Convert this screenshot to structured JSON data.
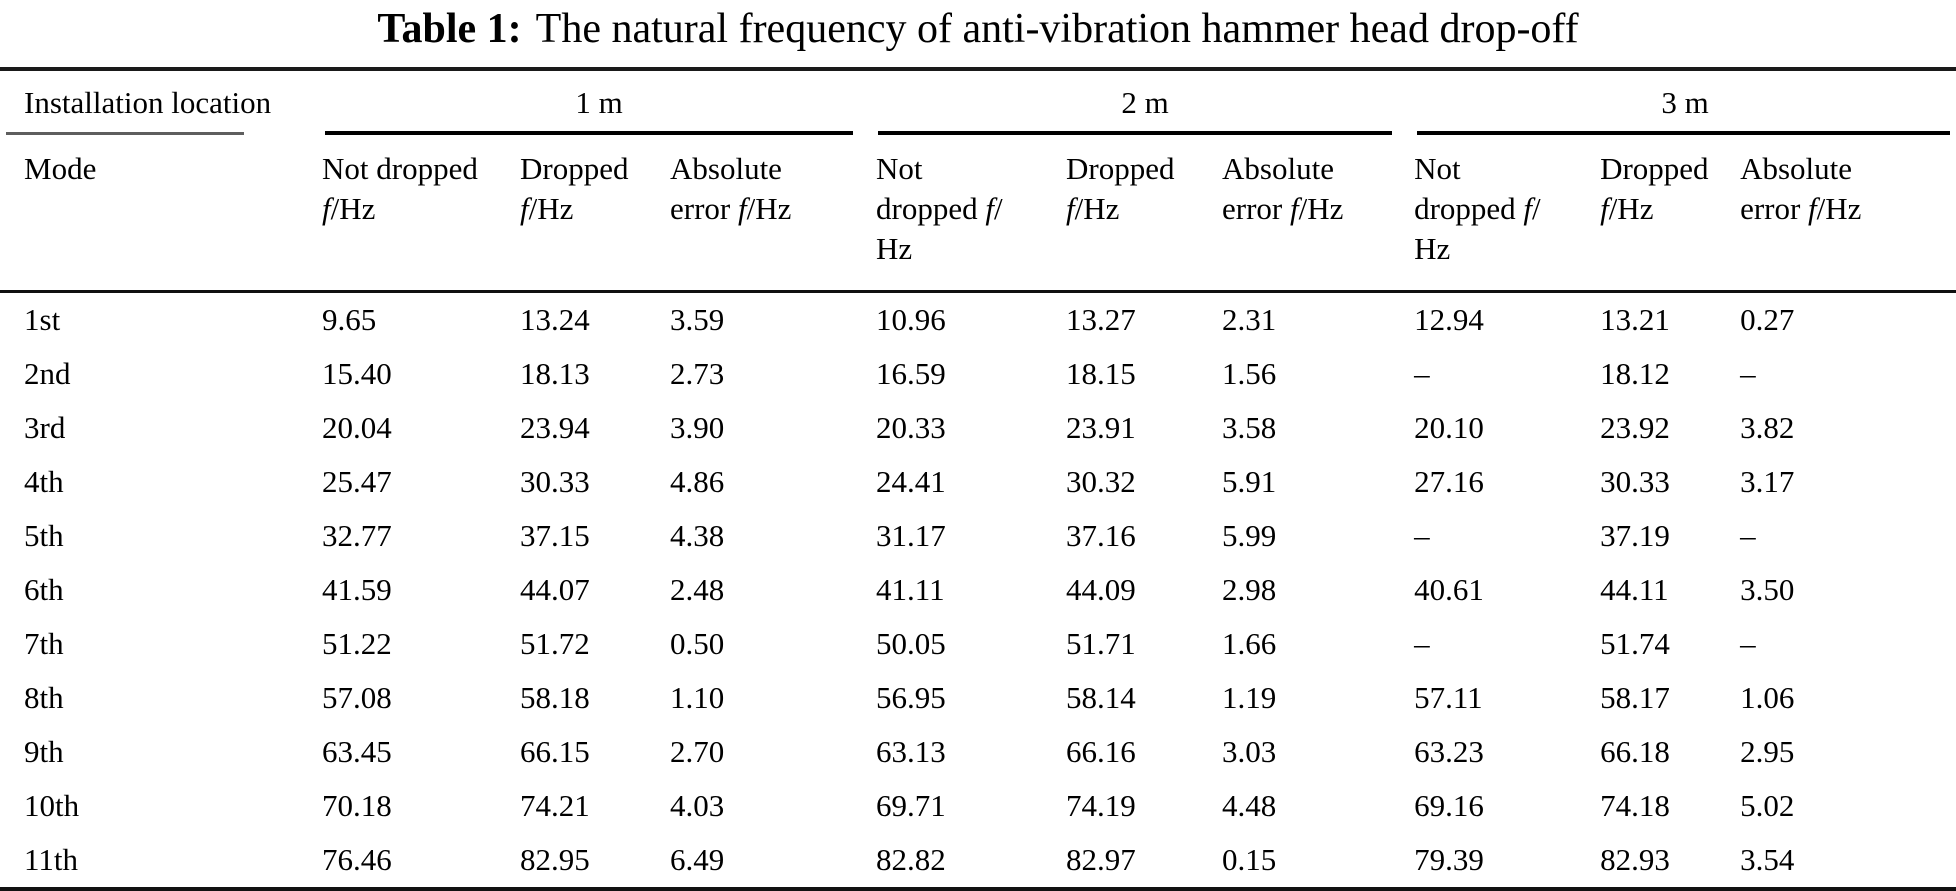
{
  "title": {
    "label": "Table 1:",
    "text": "The natural frequency of anti-vibration hammer head drop-off"
  },
  "table": {
    "corner_header": "Installation location",
    "mode_header": "Mode",
    "groups": [
      {
        "label": "1 m"
      },
      {
        "label": "2 m"
      },
      {
        "label": "3 m"
      }
    ],
    "col_headers": [
      {
        "l1": "Not dropped",
        "l2pre": "",
        "l2f": "f",
        "l2post": "/Hz",
        "l3": ""
      },
      {
        "l1": "Dropped",
        "l2pre": "",
        "l2f": "f",
        "l2post": "/Hz",
        "l3": ""
      },
      {
        "l1": "Absolute",
        "l2pre": "error ",
        "l2f": "f",
        "l2post": "/Hz",
        "l3": ""
      },
      {
        "l1": "Not",
        "l2pre": "dropped ",
        "l2f": "f",
        "l2post": "/",
        "l3": "Hz"
      },
      {
        "l1": "Dropped",
        "l2pre": "",
        "l2f": "f",
        "l2post": "/Hz",
        "l3": ""
      },
      {
        "l1": "Absolute",
        "l2pre": "error ",
        "l2f": "f",
        "l2post": "/Hz",
        "l3": ""
      },
      {
        "l1": "Not",
        "l2pre": "dropped ",
        "l2f": "f",
        "l2post": "/",
        "l3": "Hz"
      },
      {
        "l1": "Dropped",
        "l2pre": "",
        "l2f": "f",
        "l2post": "/Hz",
        "l3": ""
      },
      {
        "l1": "Absolute",
        "l2pre": "error ",
        "l2f": "f",
        "l2post": "/Hz",
        "l3": ""
      }
    ],
    "rows": [
      [
        "1st",
        "9.65",
        "13.24",
        "3.59",
        "10.96",
        "13.27",
        "2.31",
        "12.94",
        "13.21",
        "0.27"
      ],
      [
        "2nd",
        "15.40",
        "18.13",
        "2.73",
        "16.59",
        "18.15",
        "1.56",
        "–",
        "18.12",
        "–"
      ],
      [
        "3rd",
        "20.04",
        "23.94",
        "3.90",
        "20.33",
        "23.91",
        "3.58",
        "20.10",
        "23.92",
        "3.82"
      ],
      [
        "4th",
        "25.47",
        "30.33",
        "4.86",
        "24.41",
        "30.32",
        "5.91",
        "27.16",
        "30.33",
        "3.17"
      ],
      [
        "5th",
        "32.77",
        "37.15",
        "4.38",
        "31.17",
        "37.16",
        "5.99",
        "–",
        "37.19",
        "–"
      ],
      [
        "6th",
        "41.59",
        "44.07",
        "2.48",
        "41.11",
        "44.09",
        "2.98",
        "40.61",
        "44.11",
        "3.50"
      ],
      [
        "7th",
        "51.22",
        "51.72",
        "0.50",
        "50.05",
        "51.71",
        "1.66",
        "–",
        "51.74",
        "–"
      ],
      [
        "8th",
        "57.08",
        "58.18",
        "1.10",
        "56.95",
        "58.14",
        "1.19",
        "57.11",
        "58.17",
        "1.06"
      ],
      [
        "9th",
        "63.45",
        "66.15",
        "2.70",
        "63.13",
        "66.16",
        "3.03",
        "63.23",
        "66.18",
        "2.95"
      ],
      [
        "10th",
        "70.18",
        "74.21",
        "4.03",
        "69.71",
        "74.19",
        "4.48",
        "69.16",
        "74.18",
        "5.02"
      ],
      [
        "11th",
        "76.46",
        "82.95",
        "6.49",
        "82.82",
        "82.97",
        "0.15",
        "79.39",
        "82.93",
        "3.54"
      ]
    ]
  }
}
